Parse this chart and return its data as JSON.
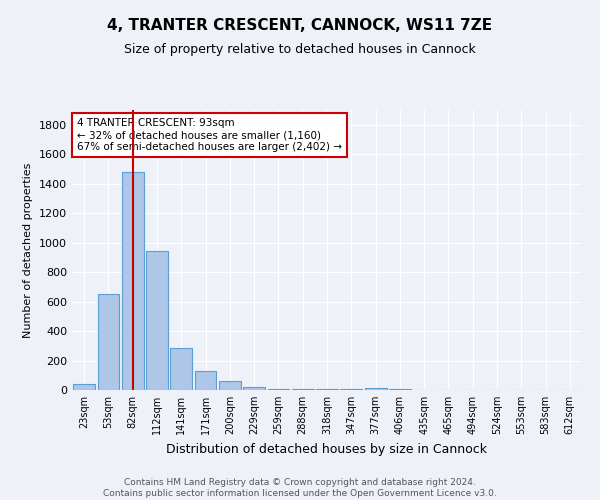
{
  "title1": "4, TRANTER CRESCENT, CANNOCK, WS11 7ZE",
  "title2": "Size of property relative to detached houses in Cannock",
  "xlabel": "Distribution of detached houses by size in Cannock",
  "ylabel": "Number of detached properties",
  "bar_labels": [
    "23sqm",
    "53sqm",
    "82sqm",
    "112sqm",
    "141sqm",
    "171sqm",
    "200sqm",
    "229sqm",
    "259sqm",
    "288sqm",
    "318sqm",
    "347sqm",
    "377sqm",
    "406sqm",
    "435sqm",
    "465sqm",
    "494sqm",
    "524sqm",
    "553sqm",
    "583sqm",
    "612sqm"
  ],
  "bar_values": [
    40,
    650,
    1480,
    940,
    285,
    130,
    60,
    20,
    10,
    5,
    5,
    5,
    15,
    5,
    0,
    0,
    0,
    0,
    0,
    0,
    0
  ],
  "bar_color": "#aec6e8",
  "bar_edge_color": "#5a9fd4",
  "ylim": [
    0,
    1900
  ],
  "yticks": [
    0,
    200,
    400,
    600,
    800,
    1000,
    1200,
    1400,
    1600,
    1800
  ],
  "vline_x": 2,
  "annotation_title": "4 TRANTER CRESCENT: 93sqm",
  "annotation_line1": "← 32% of detached houses are smaller (1,160)",
  "annotation_line2": "67% of semi-detached houses are larger (2,402) →",
  "annotation_box_color": "#ffffff",
  "annotation_box_edge": "#cc0000",
  "vline_color": "#cc0000",
  "background_color": "#eef2f8",
  "grid_color": "#ffffff",
  "footer_line1": "Contains HM Land Registry data © Crown copyright and database right 2024.",
  "footer_line2": "Contains public sector information licensed under the Open Government Licence v3.0."
}
